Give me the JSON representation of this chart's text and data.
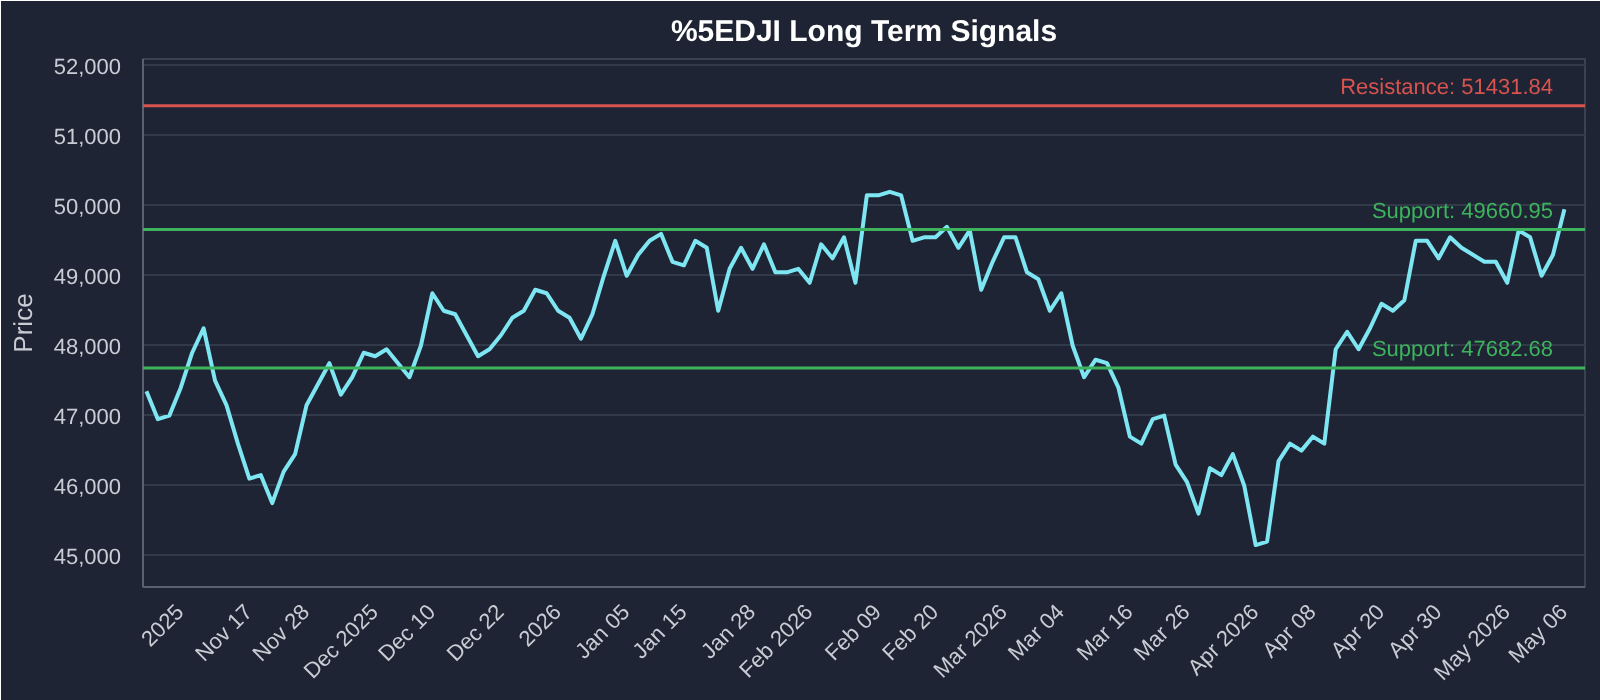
{
  "chart_data": {
    "type": "line",
    "title": "%5EDJI Long Term Signals",
    "ylabel": "Price",
    "categories": [
      null,
      null,
      null,
      "2025",
      null,
      null,
      null,
      null,
      null,
      "Nov 17",
      null,
      null,
      null,
      null,
      "Nov 28",
      null,
      null,
      null,
      null,
      null,
      "Dec 2025",
      null,
      null,
      null,
      null,
      "Dec 10",
      null,
      null,
      null,
      null,
      null,
      "Dec 22",
      null,
      null,
      null,
      null,
      "2026",
      null,
      null,
      null,
      null,
      null,
      "Jan 05",
      null,
      null,
      null,
      null,
      "Jan 15",
      null,
      null,
      null,
      null,
      null,
      "Jan 28",
      null,
      null,
      null,
      null,
      "Feb 2026",
      null,
      null,
      null,
      null,
      null,
      "Feb 09",
      null,
      null,
      null,
      null,
      "Feb 20",
      null,
      null,
      null,
      null,
      null,
      "Mar 2026",
      null,
      null,
      null,
      null,
      "Mar 04",
      null,
      null,
      null,
      null,
      null,
      "Mar 16",
      null,
      null,
      null,
      null,
      "Mar 26",
      null,
      null,
      null,
      null,
      null,
      "Apr 2026",
      null,
      null,
      null,
      null,
      "Apr 08",
      null,
      null,
      null,
      null,
      null,
      "Apr 20",
      null,
      null,
      null,
      null,
      "Apr 30",
      null,
      null,
      null,
      null,
      null,
      "May 2026",
      null,
      null,
      null,
      null,
      "May 06"
    ],
    "series": [
      {
        "color": "#7ee6f2",
        "values": [
          47350,
          46950,
          47000,
          47400,
          47900,
          48250,
          47500,
          47150,
          46600,
          46100,
          46150,
          45750,
          46200,
          46450,
          47150,
          47450,
          47750,
          47300,
          47550,
          47900,
          47850,
          47950,
          47750,
          47550,
          48000,
          48750,
          48500,
          48450,
          48150,
          47850,
          47950,
          48150,
          48400,
          48500,
          48800,
          48750,
          48500,
          48400,
          48100,
          48450,
          49000,
          49500,
          49000,
          49300,
          49500,
          49600,
          49200,
          49150,
          49500,
          49400,
          48500,
          49100,
          49400,
          49100,
          49450,
          49050,
          49050,
          49100,
          48900,
          49450,
          49250,
          49550,
          48900,
          50150,
          50150,
          50200,
          50150,
          49500,
          49550,
          49550,
          49700,
          49400,
          49650,
          48800,
          49200,
          49550,
          49550,
          49050,
          48950,
          48500,
          48750,
          48000,
          47550,
          47800,
          47750,
          47400,
          46700,
          46600,
          46950,
          47000,
          46300,
          46050,
          45600,
          46250,
          46150,
          46450,
          46000,
          45150,
          45200,
          46350,
          46600,
          46500,
          46700,
          46600,
          47950,
          48200,
          47950,
          48250,
          48600,
          48500,
          48650,
          49500,
          49500,
          49250,
          49550,
          49400,
          49300,
          49200,
          49200,
          48900,
          49650,
          49550,
          49000,
          49300,
          49950
        ]
      }
    ],
    "ylim": [
      44550,
      52100
    ],
    "yticks": [
      {
        "value": 45000,
        "label": "45,000"
      },
      {
        "value": 46000,
        "label": "46,000"
      },
      {
        "value": 47000,
        "label": "47,000"
      },
      {
        "value": 48000,
        "label": "48,000"
      },
      {
        "value": 49000,
        "label": "49,000"
      },
      {
        "value": 50000,
        "label": "50,000"
      },
      {
        "value": 51000,
        "label": "51,000"
      },
      {
        "value": 52000,
        "label": "52,000"
      }
    ],
    "ref_lines": [
      {
        "axis": "y",
        "value": 51431.84,
        "label": "Resistance: 51431.84",
        "color": "#d9534f"
      },
      {
        "axis": "y",
        "value": 49660.95,
        "label": "Support: 49660.95",
        "color": "#3cb35c"
      },
      {
        "axis": "y",
        "value": 47682.68,
        "label": "Support: 47682.68",
        "color": "#3cb35c"
      }
    ],
    "grid": "y",
    "marker": "none",
    "line_style": "solid"
  }
}
